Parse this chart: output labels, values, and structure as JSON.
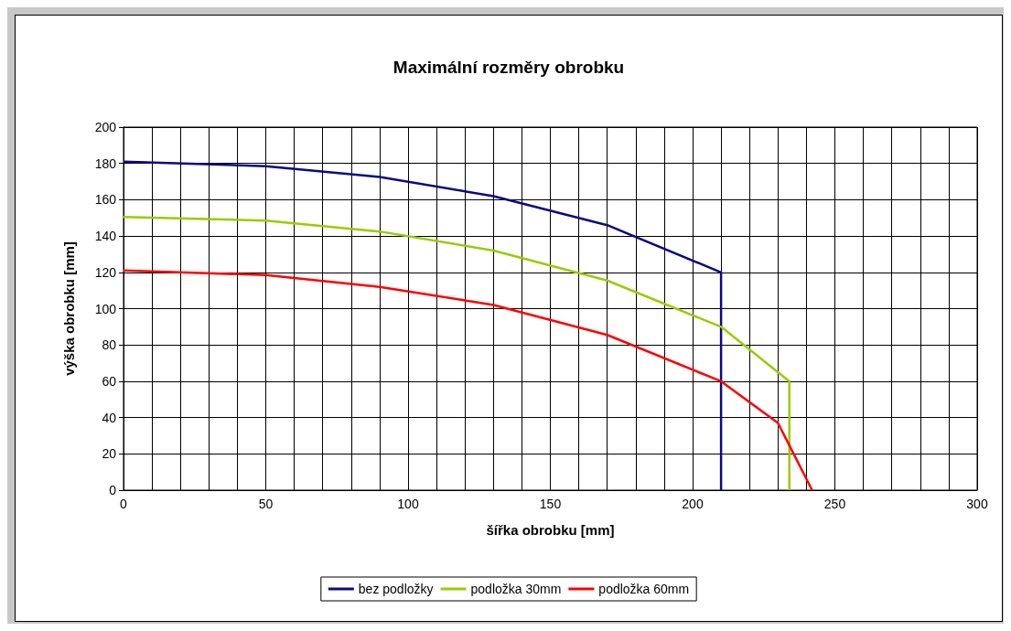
{
  "chart_data": {
    "type": "line",
    "title": "Maximální rozměry obrobku",
    "xlabel": "šířka obrobku [mm]",
    "ylabel": "výška obrobku [mm]",
    "xlim": [
      0,
      300
    ],
    "xticks": [
      0,
      {
        "value": 10,
        "label": null
      },
      {
        "value": 20,
        "label": null
      },
      {
        "value": 30,
        "label": null
      },
      {
        "value": 40,
        "label": null
      },
      50,
      {
        "value": 60,
        "label": null
      },
      {
        "value": 70,
        "label": null
      },
      {
        "value": 80,
        "label": null
      },
      {
        "value": 90,
        "label": null
      },
      100,
      {
        "value": 110,
        "label": null
      },
      {
        "value": 120,
        "label": null
      },
      {
        "value": 130,
        "label": null
      },
      {
        "value": 140,
        "label": null
      },
      150,
      {
        "value": 160,
        "label": null
      },
      {
        "value": 170,
        "label": null
      },
      {
        "value": 180,
        "label": null
      },
      {
        "value": 190,
        "label": null
      },
      200,
      {
        "value": 210,
        "label": null
      },
      {
        "value": 220,
        "label": null
      },
      {
        "value": 230,
        "label": null
      },
      {
        "value": 240,
        "label": null
      },
      250,
      {
        "value": 260,
        "label": null
      },
      {
        "value": 270,
        "label": null
      },
      {
        "value": 280,
        "label": null
      },
      {
        "value": 290,
        "label": null
      },
      300
    ],
    "ylim": [
      0,
      200
    ],
    "yticks": [
      0,
      20,
      40,
      60,
      80,
      100,
      120,
      140,
      160,
      180,
      200
    ],
    "grid": true,
    "legend": "bottom",
    "marker": "none",
    "line_style": "solid",
    "series": [
      {
        "name": "bez podložky",
        "color": "#0a0a80",
        "x": [
          0,
          50,
          90,
          130,
          170,
          210,
          210
        ],
        "values": [
          181,
          178.5,
          172.5,
          162,
          146,
          120,
          0
        ]
      },
      {
        "name": "podložka 30mm",
        "color": "#99cc00",
        "x": [
          0,
          50,
          90,
          130,
          170,
          210,
          234,
          234
        ],
        "values": [
          150.5,
          148.5,
          142.5,
          132,
          115.5,
          90,
          60,
          0
        ]
      },
      {
        "name": "podložka 60mm",
        "color": "#ff0000",
        "x": [
          0,
          50,
          90,
          130,
          170,
          210,
          230,
          242
        ],
        "values": [
          121,
          118.5,
          112,
          102,
          85.5,
          60,
          37,
          0
        ]
      }
    ]
  }
}
